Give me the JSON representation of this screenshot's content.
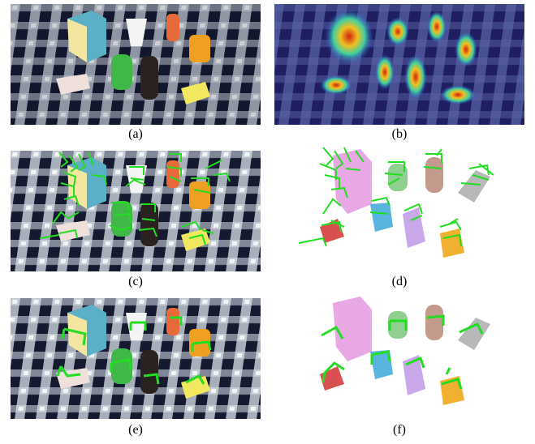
{
  "figure": {
    "panels": [
      {
        "id": "a",
        "label": "(a)",
        "kind": "rgb-scene"
      },
      {
        "id": "b",
        "label": "(b)",
        "kind": "heatmap-overlay"
      },
      {
        "id": "c",
        "label": "(c)",
        "kind": "rgb-dense-grasps"
      },
      {
        "id": "d",
        "label": "(d)",
        "kind": "pointcloud-dense-grasps"
      },
      {
        "id": "e",
        "label": "(e)",
        "kind": "rgb-filtered-grasps"
      },
      {
        "id": "f",
        "label": "(f)",
        "kind": "pointcloud-filtered-grasps"
      }
    ],
    "colors": {
      "grasp": "#22dd22",
      "tablecloth_dark": "#14182e",
      "tablecloth_light": "#e9eef2",
      "heatmap_base": "#2a2a7a",
      "pc_box": "#e8a8e4",
      "pc_cup": "#8fcf8f",
      "pc_can_brown": "#c49a8c",
      "pc_bottle_gray": "#b8b8b8",
      "pc_case_red": "#d95050",
      "pc_bottle_blue": "#5ab4e0",
      "pc_bottle_purple": "#c8a8e8",
      "pc_toy_yellow": "#f0b030"
    }
  }
}
